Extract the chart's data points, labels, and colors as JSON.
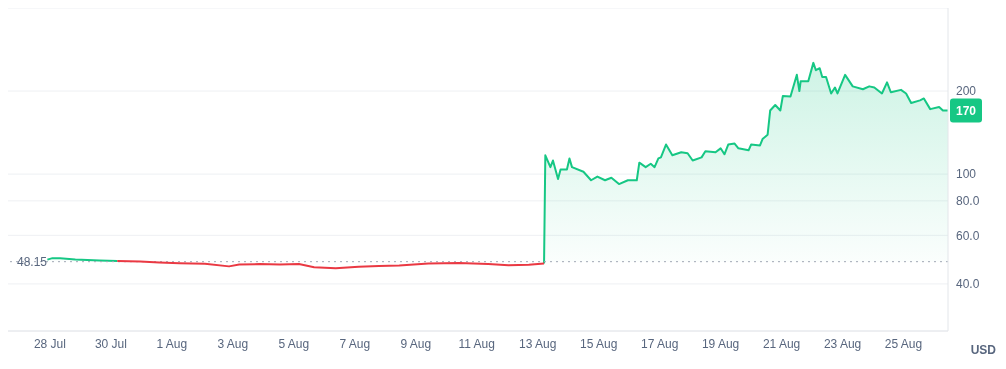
{
  "chart_data": {
    "type": "area",
    "ylabel": "USD",
    "x": [
      "--07-27T22:00",
      "--07-28T02:00",
      "--07-28T08:00",
      "--07-28T20:00",
      "--07-29T15:00",
      "--07-30T05:00",
      "--07-30T23:00",
      "--07-31T14:00",
      "--08-01T06:00",
      "--08-02T02:00",
      "--08-02T21:00",
      "--08-03T05:00",
      "--08-03T21:00",
      "--08-04T13:00",
      "--08-05T04:00",
      "--08-05T16:00",
      "--08-06T09:00",
      "--08-07T03:00",
      "--08-07T19:00",
      "--08-08T11:00",
      "--08-09T10:00",
      "--08-10T10:00",
      "--08-11T09:00",
      "--08-12T01:00",
      "--08-12T17:00",
      "--08-13T05:00",
      "--08-13T06:00",
      "--08-13T10:00",
      "--08-13T12:00",
      "--08-13T16:00",
      "--08-13T18:00",
      "--08-13T23:00",
      "--08-14T01:00",
      "--08-14T03:00",
      "--08-14T12:00",
      "--08-14T18:00",
      "--08-14T23:00",
      "--08-15T05:00",
      "--08-15T10:00",
      "--08-15T16:00",
      "--08-15T23:00",
      "--08-16T06:00",
      "--08-16T08:00",
      "--08-16T13:00",
      "--08-16T17:00",
      "--08-16T20:00",
      "--08-16T23:00",
      "--08-17T01:00",
      "--08-17T05:00",
      "--08-17T10:00",
      "--08-17T17:00",
      "--08-17T22:00",
      "--08-18T02:00",
      "--08-18T09:00",
      "--08-18T12:00",
      "--08-18T20:00",
      "--08-19T00:00",
      "--08-19T03:00",
      "--08-19T06:00",
      "--08-19T11:00",
      "--08-19T14:00",
      "--08-19T22:00",
      "--08-20T00:00",
      "--08-20T07:00",
      "--08-20T09:00",
      "--08-20T13:00",
      "--08-20T15:00",
      "--08-20T19:00",
      "--08-20T23:00",
      "--08-21T01:00",
      "--08-21T07:00",
      "--08-21T12:00",
      "--08-21T14:00",
      "--08-21T15:00",
      "--08-21T21:00",
      "--08-22T01:00",
      "--08-22T03:00",
      "--08-22T06:00",
      "--08-22T08:00",
      "--08-22T11:00",
      "--08-22T15:00",
      "--08-22T18:00",
      "--08-22T20:00",
      "--08-23T02:00",
      "--08-23T08:00",
      "--08-23T16:00",
      "--08-23T21:00",
      "--08-24T01:00",
      "--08-24T07:00",
      "--08-24T11:00",
      "--08-24T14:00",
      "--08-24T22:00",
      "--08-25T02:00",
      "--08-25T06:00",
      "--08-25T13:00",
      "--08-25T16:00",
      "--08-25T21:00",
      "--08-26T04:00",
      "--08-26T07:00",
      "--08-26T11:00"
    ],
    "series": [
      {
        "color": "#16c784",
        "values": [
          49.0,
          49.6,
          49.5,
          49.0,
          48.6,
          48.4,
          null,
          null,
          null,
          null,
          null,
          null,
          null,
          null,
          null,
          null,
          null,
          null,
          null,
          null,
          null,
          null,
          null,
          null,
          null,
          47.4,
          117,
          106,
          112,
          96,
          104,
          104,
          114,
          106,
          102,
          95,
          98,
          95,
          97,
          92,
          95,
          95,
          110,
          106,
          109,
          106,
          114,
          115,
          128,
          117,
          120,
          119,
          112,
          115,
          121,
          120,
          124,
          118,
          128,
          129,
          124,
          122,
          128,
          127,
          134,
          139,
          170,
          178,
          170,
          192,
          191,
          229,
          200,
          217,
          217,
          253,
          238,
          242,
          225,
          225,
          196,
          206,
          196,
          229,
          208,
          203,
          208,
          206,
          196,
          215,
          198,
          202,
          196,
          181,
          185,
          188,
          172,
          175,
          170,
          170
        ]
      },
      {
        "type": "line",
        "color": "#ea3943",
        "values": [
          null,
          null,
          null,
          null,
          null,
          48.4,
          48.2,
          47.8,
          47.5,
          47.3,
          46.3,
          47.0,
          47.2,
          47.0,
          47.2,
          46.0,
          45.6,
          46.2,
          46.4,
          46.6,
          47.4,
          47.6,
          47.2,
          46.7,
          46.9,
          47.4,
          null,
          null,
          null,
          null,
          null,
          null,
          null,
          null,
          null,
          null,
          null,
          null,
          null,
          null,
          null,
          null,
          null,
          null,
          null,
          null,
          null,
          null,
          null,
          null,
          null,
          null,
          null,
          null,
          null,
          null,
          null,
          null,
          null,
          null,
          null,
          null,
          null,
          null,
          null,
          null,
          null,
          null,
          null,
          null,
          null,
          null,
          null,
          null,
          null,
          null,
          null,
          null,
          null,
          null,
          null,
          null,
          null,
          null,
          null,
          null,
          null,
          null,
          null,
          null,
          null,
          null,
          null,
          null,
          null,
          null,
          null,
          null,
          null,
          null
        ]
      }
    ],
    "xlim": [
      "--07-26T15:00",
      "--08-26T11:00"
    ],
    "xticks": [
      {
        "value": "--07-28",
        "label": "28 Jul"
      },
      {
        "value": "--07-30",
        "label": "30 Jul"
      },
      {
        "value": "--08-01",
        "label": "1 Aug"
      },
      {
        "value": "--08-03",
        "label": "3 Aug"
      },
      {
        "value": "--08-05",
        "label": "5 Aug"
      },
      {
        "value": "--08-07",
        "label": "7 Aug"
      },
      {
        "value": "--08-09",
        "label": "9 Aug"
      },
      {
        "value": "--08-11",
        "label": "11 Aug"
      },
      {
        "value": "--08-13",
        "label": "13 Aug"
      },
      {
        "value": "--08-15",
        "label": "15 Aug"
      },
      {
        "value": "--08-17",
        "label": "17 Aug"
      },
      {
        "value": "--08-19",
        "label": "19 Aug"
      },
      {
        "value": "--08-21",
        "label": "21 Aug"
      },
      {
        "value": "--08-23",
        "label": "23 Aug"
      },
      {
        "value": "--08-25",
        "label": "25 Aug"
      }
    ],
    "ylim": [
      27,
      400
    ],
    "yticks": [
      {
        "value": 40,
        "label": "40.0"
      },
      {
        "value": 60,
        "label": "60.0"
      },
      {
        "value": 80,
        "label": "80.0"
      },
      100,
      200
    ],
    "log": "y",
    "grid": "y",
    "legend": false,
    "ref_lines": [
      {
        "axis": "y",
        "value": 48.15,
        "label": "48.15",
        "color": "#a0a7b4",
        "line_style": "dotted"
      }
    ],
    "annotations": [
      {
        "text": "170",
        "x": "--08-26T11:00",
        "y": 170
      }
    ]
  }
}
